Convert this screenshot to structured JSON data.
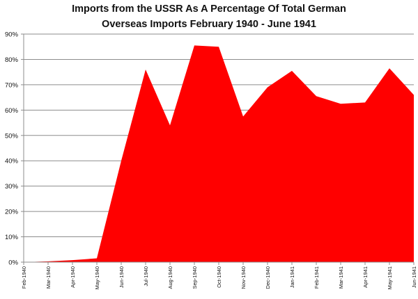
{
  "chart_data": {
    "type": "area",
    "title_lines": [
      "Imports from the USSR As A Percentage Of Total German",
      "Overseas Imports February 1940 - June 1941"
    ],
    "categories": [
      "Feb-1940",
      "Mar-1940",
      "Apr-1940",
      "May-1940",
      "Jun-1940",
      "Jul-1940",
      "Aug-1940",
      "Sep-1940",
      "Oct-1940",
      "Nov-1940",
      "Dec-1940",
      "Jan-1941",
      "Feb-1941",
      "Mar-1941",
      "Apr-1941",
      "May-1941",
      "Jun-1941"
    ],
    "values": [
      0,
      0.3,
      0.8,
      1.5,
      40,
      76,
      54,
      85.5,
      85,
      57.5,
      69,
      75.5,
      65.5,
      62.5,
      63,
      76.5,
      66
    ],
    "ylim": [
      0,
      90
    ],
    "yticks": [
      "0%",
      "10%",
      "20%",
      "30%",
      "40%",
      "50%",
      "60%",
      "70%",
      "80%",
      "90%"
    ],
    "grid": true,
    "legend": "none",
    "color": "#ff0000",
    "xlabel": "",
    "ylabel": ""
  }
}
